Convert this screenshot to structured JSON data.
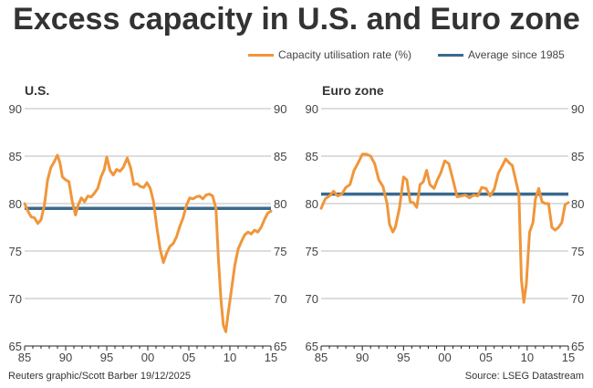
{
  "title": "Excess capacity in U.S. and Euro zone",
  "legend": [
    {
      "label": "Capacity utilisation rate (%)",
      "color": "#F0963A"
    },
    {
      "label": "Average since 1985",
      "color": "#3A6A8E"
    }
  ],
  "footer": {
    "credit": "Reuters graphic/Scott Barber 19/12/2025",
    "source": "Source: LSEG Datastream"
  },
  "chart_data": [
    {
      "type": "line",
      "title": "U.S.",
      "xlabel": "",
      "ylabel": "",
      "xlim": [
        1985,
        2015
      ],
      "ylim": [
        65,
        90
      ],
      "yticks": [
        65,
        70,
        75,
        80,
        85,
        90
      ],
      "xtick_labels": [
        "85",
        "90",
        "95",
        "00",
        "05",
        "10",
        "15"
      ],
      "xticks": [
        1985,
        1990,
        1995,
        2000,
        2005,
        2010,
        2015
      ],
      "grid": true,
      "series": [
        {
          "name": "Capacity utilisation rate (%)",
          "color": "#F0963A",
          "x": [
            1985.0,
            1985.4,
            1985.8,
            1986.2,
            1986.6,
            1987.0,
            1987.4,
            1987.8,
            1988.2,
            1988.6,
            1989.0,
            1989.3,
            1989.6,
            1990.0,
            1990.4,
            1990.8,
            1991.2,
            1991.5,
            1991.9,
            1992.3,
            1992.7,
            1993.1,
            1993.5,
            1993.9,
            1994.3,
            1994.7,
            1995.0,
            1995.4,
            1995.8,
            1996.2,
            1996.6,
            1997.0,
            1997.5,
            1997.9,
            1998.3,
            1998.7,
            1999.1,
            1999.5,
            1999.9,
            2000.3,
            2000.7,
            2001.1,
            2001.5,
            2001.9,
            2002.3,
            2002.7,
            2003.1,
            2003.5,
            2003.9,
            2004.3,
            2004.7,
            2005.1,
            2005.5,
            2005.9,
            2006.3,
            2006.7,
            2007.1,
            2007.5,
            2007.9,
            2008.3,
            2008.6,
            2008.9,
            2009.2,
            2009.5,
            2009.8,
            2010.2,
            2010.6,
            2011.0,
            2011.4,
            2011.8,
            2012.2,
            2012.6,
            2013.0,
            2013.4,
            2013.8,
            2014.2,
            2014.6,
            2015.0
          ],
          "values": [
            80.0,
            79.2,
            78.6,
            78.5,
            77.9,
            78.3,
            79.8,
            82.5,
            83.8,
            84.4,
            85.1,
            84.3,
            82.8,
            82.5,
            82.3,
            80.2,
            78.8,
            79.8,
            80.6,
            80.2,
            80.8,
            80.7,
            81.1,
            81.6,
            82.8,
            83.6,
            84.9,
            83.5,
            83.0,
            83.6,
            83.4,
            83.8,
            84.8,
            83.8,
            82.0,
            82.1,
            81.8,
            81.7,
            82.2,
            81.6,
            80.2,
            77.5,
            75.2,
            73.8,
            74.8,
            75.5,
            75.8,
            76.5,
            77.6,
            78.5,
            79.8,
            80.6,
            80.5,
            80.7,
            80.8,
            80.5,
            80.9,
            81.0,
            80.8,
            79.5,
            74.2,
            70.0,
            67.2,
            66.5,
            68.5,
            71.0,
            73.5,
            75.2,
            76.0,
            76.7,
            77.0,
            76.8,
            77.2,
            77.0,
            77.5,
            78.3,
            79.0,
            79.2
          ]
        },
        {
          "name": "Average since 1985",
          "color": "#3A6A8E",
          "x": [
            1985,
            2015
          ],
          "values": [
            79.5,
            79.5
          ]
        }
      ]
    },
    {
      "type": "line",
      "title": "Euro zone",
      "xlabel": "",
      "ylabel": "",
      "xlim": [
        1985,
        2015
      ],
      "ylim": [
        65,
        90
      ],
      "yticks": [
        65,
        70,
        75,
        80,
        85,
        90
      ],
      "xtick_labels": [
        "85",
        "90",
        "95",
        "00",
        "05",
        "10",
        "15"
      ],
      "xticks": [
        1985,
        1990,
        1995,
        2000,
        2005,
        2010,
        2015
      ],
      "grid": true,
      "series": [
        {
          "name": "Capacity utilisation rate (%)",
          "color": "#F0963A",
          "x": [
            1985.0,
            1985.5,
            1986.0,
            1986.5,
            1987.0,
            1987.5,
            1988.0,
            1988.5,
            1989.0,
            1989.5,
            1990.0,
            1990.5,
            1991.0,
            1991.5,
            1992.0,
            1992.5,
            1993.0,
            1993.3,
            1993.7,
            1994.0,
            1994.5,
            1995.0,
            1995.4,
            1995.8,
            1996.2,
            1996.6,
            1997.0,
            1997.4,
            1997.8,
            1998.2,
            1998.7,
            1999.1,
            1999.5,
            2000.0,
            2000.5,
            2001.0,
            2001.5,
            2002.0,
            2002.5,
            2003.0,
            2003.5,
            2004.0,
            2004.5,
            2005.0,
            2005.5,
            2006.0,
            2006.5,
            2007.0,
            2007.4,
            2007.8,
            2008.2,
            2008.6,
            2009.0,
            2009.3,
            2009.6,
            2009.9,
            2010.3,
            2010.7,
            2011.0,
            2011.4,
            2011.8,
            2012.2,
            2012.6,
            2013.0,
            2013.4,
            2013.8,
            2014.2,
            2014.6,
            2015.0
          ],
          "values": [
            79.5,
            80.5,
            80.8,
            81.3,
            80.8,
            81.0,
            81.7,
            82.0,
            83.5,
            84.3,
            85.2,
            85.2,
            85.0,
            84.2,
            82.5,
            81.8,
            80.0,
            77.8,
            77.0,
            77.5,
            79.5,
            82.8,
            82.5,
            80.2,
            80.1,
            79.6,
            82.0,
            82.3,
            83.5,
            82.0,
            81.6,
            82.5,
            83.2,
            84.5,
            84.2,
            82.5,
            80.7,
            80.8,
            80.9,
            80.6,
            80.9,
            80.8,
            81.7,
            81.6,
            80.8,
            81.5,
            83.2,
            84.0,
            84.7,
            84.3,
            84.0,
            82.5,
            81.0,
            72.0,
            69.6,
            71.5,
            77.0,
            78.0,
            80.5,
            81.6,
            80.2,
            80.0,
            80.0,
            77.5,
            77.2,
            77.5,
            78.0,
            79.9,
            80.1
          ]
        },
        {
          "name": "Average since 1985",
          "color": "#3A6A8E",
          "x": [
            1985,
            2015
          ],
          "values": [
            81.0,
            81.0
          ]
        }
      ]
    }
  ]
}
